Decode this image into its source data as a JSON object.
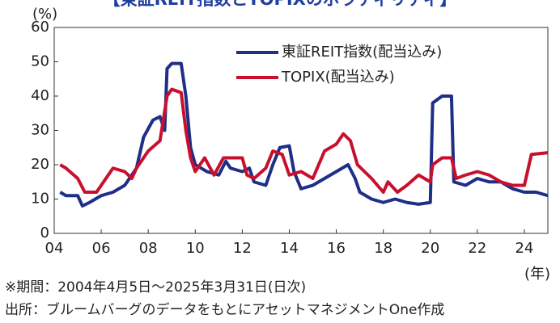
{
  "chart_data": {
    "type": "line",
    "title": "【東証REIT指数とTOPIXのボラティリティ】",
    "y_label": "(%)",
    "x_label": "(年)",
    "notes": [
      "※期間：2004年4月5日～2025年3月31日(日次)",
      "出所：ブルームバーグのデータをもとにアセットマネジメントOne作成"
    ],
    "xlim": [
      2004,
      2025
    ],
    "xticks": [
      {
        "value": 2004,
        "label": "04"
      },
      {
        "value": 2006,
        "label": "06"
      },
      {
        "value": 2008,
        "label": "08"
      },
      {
        "value": 2010,
        "label": "10"
      },
      {
        "value": 2012,
        "label": "12"
      },
      {
        "value": 2014,
        "label": "14"
      },
      {
        "value": 2016,
        "label": "16"
      },
      {
        "value": 2018,
        "label": "18"
      },
      {
        "value": 2020,
        "label": "20"
      },
      {
        "value": 2022,
        "label": "22"
      },
      {
        "value": 2024,
        "label": "24"
      }
    ],
    "ylim": [
      0,
      60
    ],
    "yticks": [
      0,
      10,
      20,
      30,
      40,
      50,
      60
    ],
    "legend": "upper right",
    "series": [
      {
        "name": "東証REIT指数(配当込み)",
        "color": "#1f2f87",
        "x": [
          2004.25,
          2004.5,
          2005,
          2005.2,
          2005.5,
          2006,
          2006.5,
          2007,
          2007.5,
          2007.8,
          2008.2,
          2008.5,
          2008.7,
          2008.8,
          2009,
          2009.4,
          2009.6,
          2009.8,
          2010,
          2010.5,
          2011,
          2011.3,
          2011.5,
          2012,
          2012.3,
          2012.5,
          2013,
          2013.3,
          2013.6,
          2014,
          2014.2,
          2014.5,
          2015,
          2015.5,
          2016,
          2016.5,
          2016.8,
          2017,
          2017.5,
          2018,
          2018.5,
          2019,
          2019.5,
          2020,
          2020.1,
          2020.5,
          2020.9,
          2021,
          2021.5,
          2022,
          2022.5,
          2023,
          2023.5,
          2024,
          2024.5,
          2025
        ],
        "values": [
          12,
          11,
          11,
          8,
          9,
          11,
          12,
          14,
          19,
          28,
          33,
          34,
          30,
          48,
          49.5,
          49.5,
          40,
          25,
          20,
          18,
          17,
          21,
          19,
          18,
          19,
          15,
          14,
          20,
          25,
          25.5,
          18,
          13,
          14,
          16,
          18,
          20,
          16,
          12,
          10,
          9,
          10,
          9,
          8.5,
          9,
          38,
          40,
          40,
          15,
          14,
          16,
          15,
          15,
          13,
          12,
          12,
          11
        ]
      },
      {
        "name": "TOPIX(配当込み)",
        "color": "#c8102e",
        "x": [
          2004.25,
          2004.5,
          2005,
          2005.3,
          2005.8,
          2006.2,
          2006.5,
          2007,
          2007.3,
          2007.5,
          2008,
          2008.5,
          2008.8,
          2009,
          2009.4,
          2009.6,
          2009.8,
          2010,
          2010.4,
          2010.8,
          2011.2,
          2011.5,
          2012,
          2012.2,
          2012.5,
          2013,
          2013.3,
          2013.7,
          2014,
          2014.5,
          2015,
          2015.5,
          2016,
          2016.3,
          2016.6,
          2016.9,
          2017.5,
          2018,
          2018.2,
          2018.6,
          2019,
          2019.5,
          2020,
          2020.1,
          2020.5,
          2020.9,
          2021.1,
          2021.5,
          2022,
          2022.5,
          2023,
          2023.5,
          2024,
          2024.3,
          2025
        ],
        "values": [
          20,
          19,
          16,
          12,
          12,
          16,
          19,
          18,
          16,
          19,
          24,
          27,
          40,
          42,
          41,
          30,
          22,
          18,
          22,
          17,
          22,
          22,
          22,
          17,
          16,
          19,
          24,
          23,
          17,
          18,
          16,
          24,
          26,
          29,
          27,
          20,
          16,
          12,
          15,
          12,
          14,
          17,
          15,
          20,
          22,
          22,
          16,
          17,
          18,
          17,
          15,
          14,
          14,
          23,
          23.5
        ]
      }
    ]
  }
}
